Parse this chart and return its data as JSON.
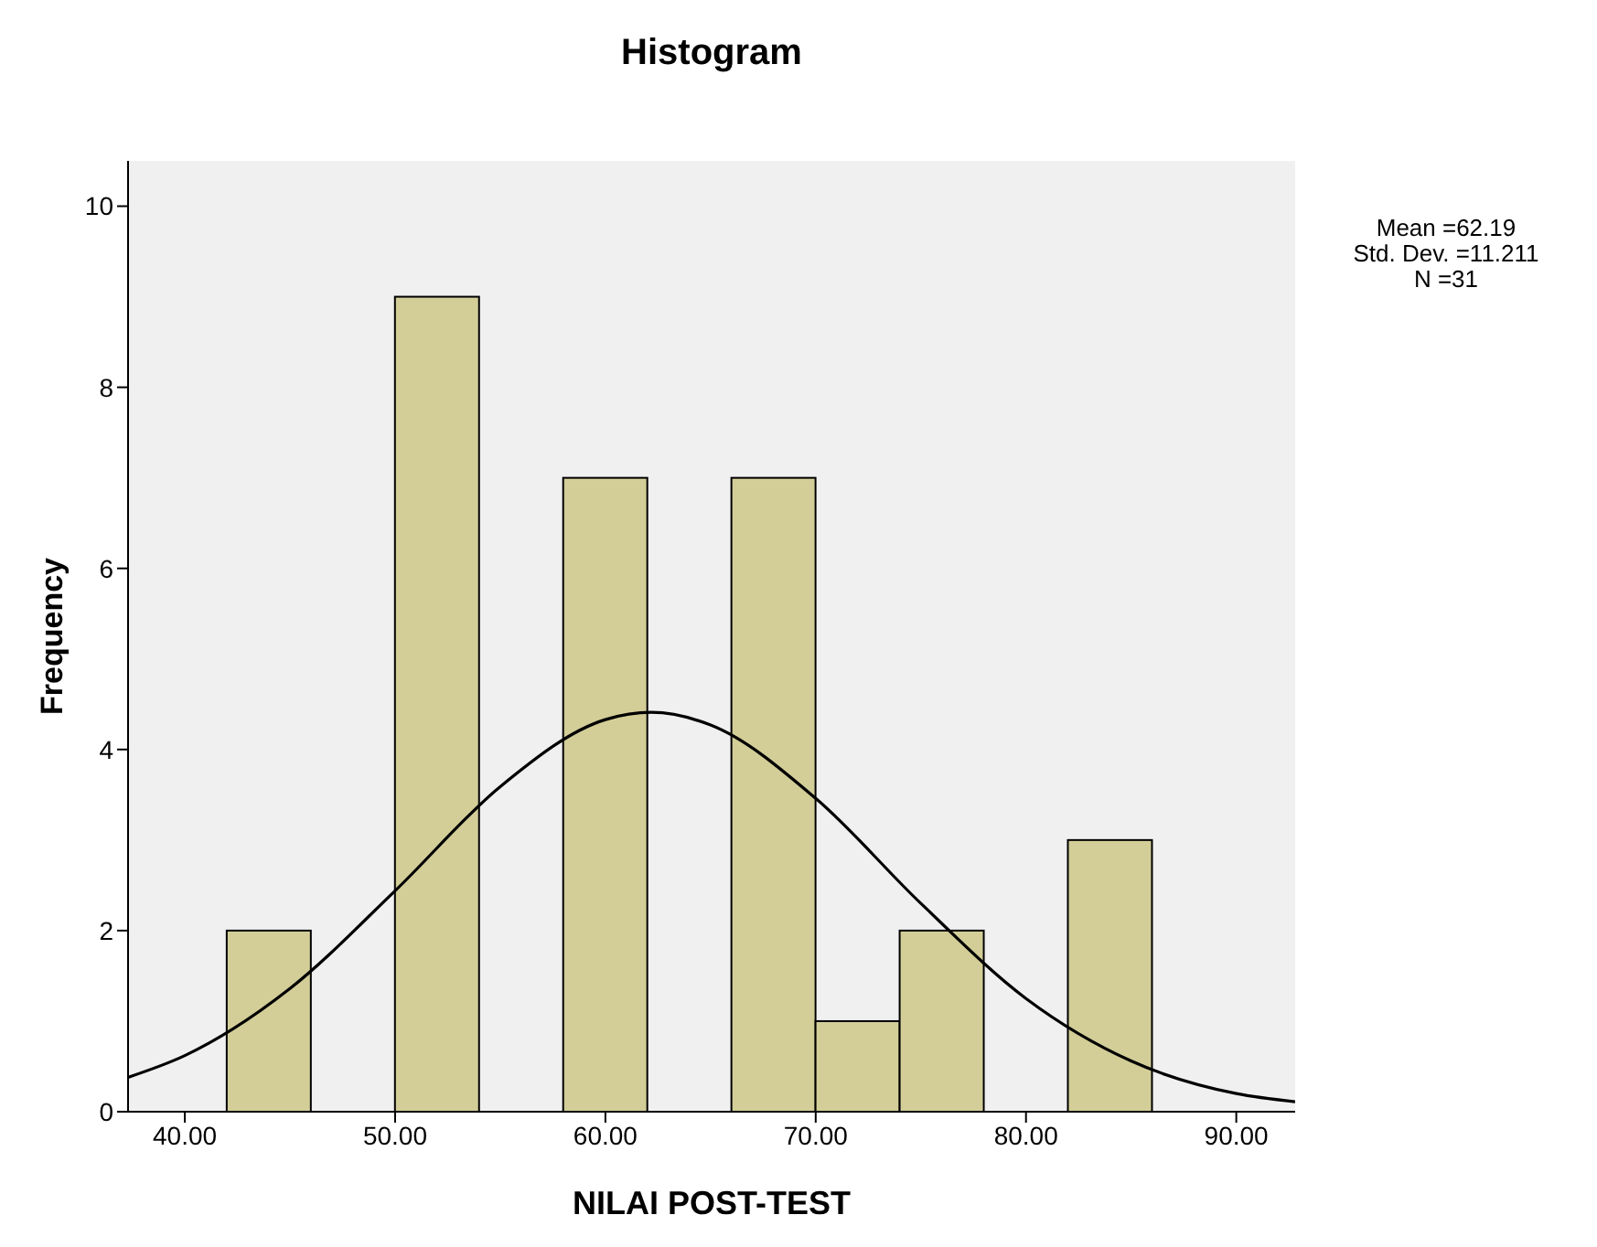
{
  "chart_data": {
    "type": "histogram",
    "title": "Histogram",
    "xlabel": "NILAI POST-TEST",
    "ylabel": "Frequency",
    "series": [
      {
        "color": "#d3ce98",
        "bins": [
          42,
          46,
          50,
          54,
          58,
          62,
          66,
          70,
          74,
          78,
          82,
          86
        ],
        "values": [
          2,
          0,
          9,
          0,
          7,
          0,
          7,
          1,
          2,
          0,
          3
        ]
      },
      {
        "type": "line",
        "color": "#000000",
        "x": [
          37.3,
          40,
          45,
          50,
          55,
          60,
          62.19,
          65,
          70,
          75,
          80,
          85,
          90,
          92.8
        ],
        "values": [
          0.38,
          0.62,
          1.36,
          2.44,
          3.59,
          4.33,
          4.41,
          4.27,
          3.46,
          2.3,
          1.25,
          0.56,
          0.2,
          0.11
        ]
      }
    ],
    "xlim": [
      37.3,
      92.8
    ],
    "xticks": [
      {
        "value": 40,
        "label": "40.00"
      },
      {
        "value": 50,
        "label": "50.00"
      },
      {
        "value": 60,
        "label": "60.00"
      },
      {
        "value": 70,
        "label": "70.00"
      },
      {
        "value": 80,
        "label": "80.00"
      },
      {
        "value": 90,
        "label": "90.00"
      }
    ],
    "ylim": [
      0,
      10.5
    ],
    "yticks": [
      0,
      2,
      4,
      6,
      8,
      10
    ],
    "marker": "none",
    "annotations": [
      "Mean =62.19",
      "Std. Dev. =11.211",
      "N =31"
    ]
  }
}
